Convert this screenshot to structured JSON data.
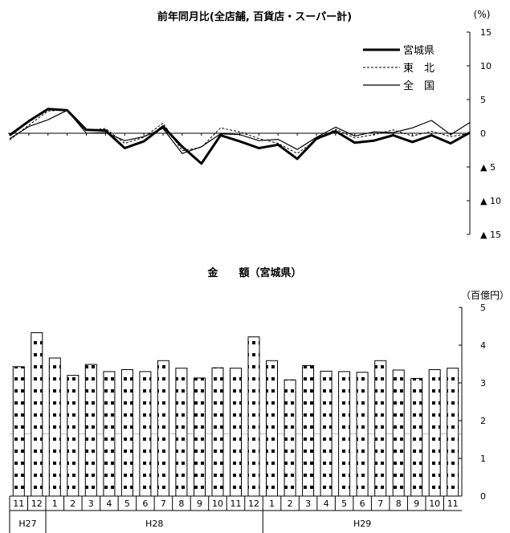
{
  "chart_data": [
    {
      "type": "line",
      "title": "前年同月比(全店舗, 百貨店・スーパー計)",
      "unit": "(%)",
      "ylim": [
        -15,
        15
      ],
      "y_ticks": [
        {
          "value": 15,
          "label": "15"
        },
        {
          "value": 10,
          "label": "10"
        },
        {
          "value": 5,
          "label": "5"
        },
        {
          "value": 0,
          "label": "0"
        },
        {
          "value": -5,
          "label": "▲ 5"
        },
        {
          "value": -10,
          "label": "▲ 10"
        },
        {
          "value": -15,
          "label": "▲ 15"
        }
      ],
      "legend_position": "top-right",
      "series": [
        {
          "name": "宮城県",
          "style": "thick",
          "values": [
            -0.3,
            1.8,
            3.6,
            3.4,
            0.5,
            0.4,
            -2.2,
            -1.2,
            1.0,
            -2.0,
            -4.5,
            -0.3,
            -1.2,
            -2.2,
            -1.7,
            -3.8,
            -0.8,
            0.3,
            -1.4,
            -1.1,
            -0.3,
            -1.3,
            -0.3,
            -1.5,
            0.1
          ]
        },
        {
          "name": "東　北",
          "style": "dashed",
          "values": [
            -1.0,
            1.2,
            3.3,
            3.5,
            0.4,
            0.7,
            -1.5,
            -0.6,
            1.5,
            -2.6,
            -2.1,
            0.8,
            0.2,
            -0.8,
            -1.5,
            -3.0,
            -1.0,
            0.6,
            -0.7,
            -0.2,
            0.5,
            -0.4,
            0.3,
            -0.5,
            0.0
          ]
        },
        {
          "name": "全　国",
          "style": "thin",
          "values": [
            -0.8,
            1.0,
            2.0,
            3.4,
            0.0,
            0.1,
            -1.1,
            -0.5,
            0.7,
            -3.0,
            -2.0,
            -0.1,
            -0.2,
            -1.1,
            -0.9,
            -2.4,
            -0.6,
            0.9,
            -0.4,
            0.2,
            0.1,
            0.8,
            1.9,
            -0.2,
            1.6
          ]
        }
      ]
    },
    {
      "type": "bar",
      "title": "金　　額（宮城県）",
      "unit": "（百億円）",
      "ylim": [
        0,
        5
      ],
      "y_ticks": [
        "0",
        "1",
        "2",
        "3",
        "4",
        "5"
      ],
      "categories": [
        "11",
        "12",
        "1",
        "2",
        "3",
        "4",
        "5",
        "6",
        "7",
        "8",
        "9",
        "10",
        "11",
        "12",
        "1",
        "2",
        "3",
        "4",
        "5",
        "6",
        "7",
        "8",
        "9",
        "10",
        "11"
      ],
      "values": [
        3.43,
        4.33,
        3.66,
        3.2,
        3.49,
        3.3,
        3.35,
        3.3,
        3.59,
        3.39,
        3.13,
        3.4,
        3.39,
        4.22,
        3.59,
        3.08,
        3.46,
        3.31,
        3.3,
        3.28,
        3.59,
        3.34,
        3.12,
        3.35,
        3.39
      ],
      "year_groups": [
        {
          "label": "H27",
          "start": 0,
          "count": 2
        },
        {
          "label": "H28",
          "start": 2,
          "count": 12
        },
        {
          "label": "H29",
          "start": 14,
          "count": 11
        }
      ]
    }
  ]
}
